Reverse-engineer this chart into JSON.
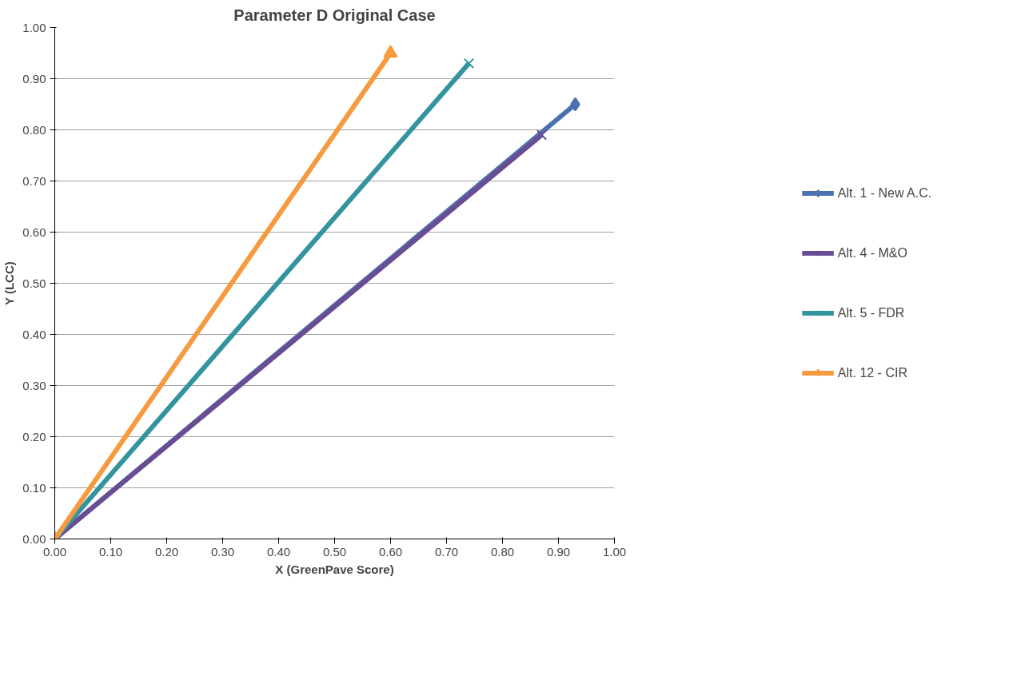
{
  "chart_data": {
    "type": "line",
    "title": "Parameter D Original Case",
    "xlabel": "X (GreenPave Score)",
    "ylabel": "Y (LCC)",
    "xlim": [
      0,
      1
    ],
    "ylim": [
      0,
      1
    ],
    "xticks": [
      {
        "value": 0,
        "label": "0.00"
      },
      {
        "value": 0.1,
        "label": "0.10"
      },
      {
        "value": 0.2,
        "label": "0.20"
      },
      {
        "value": 0.3,
        "label": "0.30"
      },
      {
        "value": 0.4,
        "label": "0.40"
      },
      {
        "value": 0.5,
        "label": "0.50"
      },
      {
        "value": 0.6,
        "label": "0.60"
      },
      {
        "value": 0.7,
        "label": "0.70"
      },
      {
        "value": 0.8,
        "label": "0.80"
      },
      {
        "value": 0.9,
        "label": "0.90"
      },
      {
        "value": 1,
        "label": "1.00"
      }
    ],
    "yticks": [
      {
        "value": 0,
        "label": "0.00"
      },
      {
        "value": 0.1,
        "label": "0.10"
      },
      {
        "value": 0.2,
        "label": "0.20"
      },
      {
        "value": 0.3,
        "label": "0.30"
      },
      {
        "value": 0.4,
        "label": "0.40"
      },
      {
        "value": 0.5,
        "label": "0.50"
      },
      {
        "value": 0.6,
        "label": "0.60"
      },
      {
        "value": 0.7,
        "label": "0.70"
      },
      {
        "value": 0.8,
        "label": "0.80"
      },
      {
        "value": 0.9,
        "label": "0.90"
      },
      {
        "value": 1,
        "label": "1.00"
      }
    ],
    "grid": "y",
    "legend": "right",
    "series": [
      {
        "name": "Alt. 1 - New A.C.",
        "color": "#4a72b0",
        "marker": "diamond",
        "x": [
          0,
          0.93
        ],
        "values": [
          0,
          0.85
        ]
      },
      {
        "name": "Alt. 4 - M&O",
        "color": "#6a4c93",
        "marker": "cross",
        "x": [
          0,
          0.87
        ],
        "values": [
          0,
          0.79
        ]
      },
      {
        "name": "Alt. 5 - FDR",
        "color": "#31949e",
        "marker": "cross",
        "x": [
          0,
          0.74
        ],
        "values": [
          0,
          0.93
        ]
      },
      {
        "name": "Alt. 12 - CIR",
        "color": "#f79a3e",
        "marker": "triangle",
        "x": [
          0,
          0.6
        ],
        "values": [
          0,
          0.95
        ]
      }
    ]
  }
}
